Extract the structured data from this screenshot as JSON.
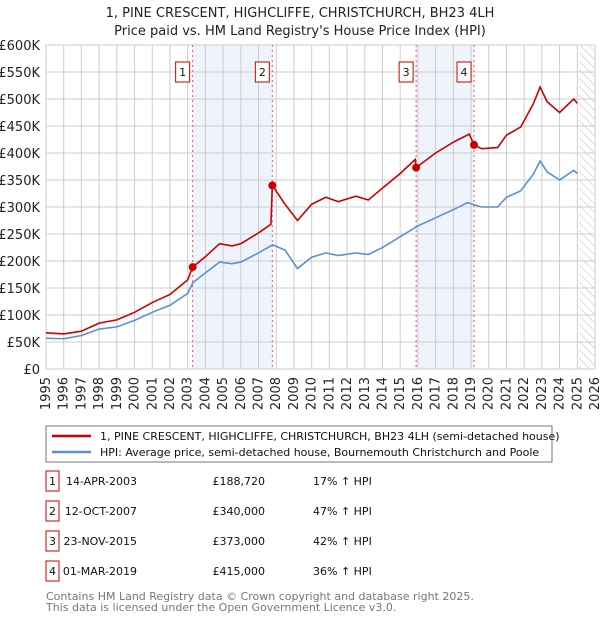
{
  "chart_data": {
    "type": "line",
    "title": "1, PINE CRESCENT, HIGHCLIFFE, CHRISTCHURCH, BH23 4LH",
    "subtitle": "Price paid vs. HM Land Registry's House Price Index (HPI)",
    "xlim": [
      1995,
      2026
    ],
    "ylim": [
      0,
      600000
    ],
    "x_ticks": [
      "1995",
      "1996",
      "1997",
      "1998",
      "1999",
      "2000",
      "2001",
      "2002",
      "2003",
      "2004",
      "2005",
      "2006",
      "2007",
      "2008",
      "2009",
      "2010",
      "2011",
      "2012",
      "2013",
      "2014",
      "2015",
      "2016",
      "2017",
      "2018",
      "2019",
      "2020",
      "2021",
      "2022",
      "2023",
      "2024",
      "2025",
      "2026"
    ],
    "y_ticks": [
      {
        "v": 0,
        "label": "£0"
      },
      {
        "v": 50000,
        "label": "£50K"
      },
      {
        "v": 100000,
        "label": "£100K"
      },
      {
        "v": 150000,
        "label": "£150K"
      },
      {
        "v": 200000,
        "label": "£200K"
      },
      {
        "v": 250000,
        "label": "£250K"
      },
      {
        "v": 300000,
        "label": "£300K"
      },
      {
        "v": 350000,
        "label": "£350K"
      },
      {
        "v": 400000,
        "label": "£400K"
      },
      {
        "v": 450000,
        "label": "£450K"
      },
      {
        "v": 500000,
        "label": "£500K"
      },
      {
        "v": 550000,
        "label": "£550K"
      },
      {
        "v": 600000,
        "label": "£600K"
      }
    ],
    "grid": true,
    "forecast_hatch_from": 2025.1,
    "shaded_periods": [
      [
        2003.28,
        2007.78
      ],
      [
        2015.9,
        2019.17
      ]
    ],
    "series": [
      {
        "name": "1, PINE CRESCENT, HIGHCLIFFE, CHRISTCHURCH, BH23 4LH (semi-detached house)",
        "color": "#cc0000",
        "x": [
          1995,
          1996,
          1997,
          1998,
          1999,
          2000,
          2001,
          2002,
          2003,
          2003.28,
          2004,
          2004.8,
          2005.5,
          2006,
          2007,
          2007.7,
          2007.78,
          2008.5,
          2009.2,
          2010,
          2010.8,
          2011.5,
          2012.5,
          2013.2,
          2014,
          2015,
          2015.85,
          2015.9,
          2017,
          2018,
          2018.9,
          2019.17,
          2019.6,
          2020.5,
          2021,
          2021.8,
          2022.5,
          2022.9,
          2023.3,
          2024,
          2024.8,
          2025
        ],
        "y": [
          67000,
          65000,
          70000,
          85000,
          91000,
          105000,
          123000,
          138000,
          165000,
          188720,
          208000,
          232000,
          228000,
          232000,
          252000,
          268000,
          340000,
          305000,
          275000,
          305000,
          318000,
          310000,
          320000,
          313000,
          335000,
          362000,
          388000,
          373000,
          400000,
          420000,
          435000,
          415000,
          408000,
          410000,
          433000,
          448000,
          490000,
          522000,
          495000,
          475000,
          500000,
          492000
        ]
      },
      {
        "name": "HPI: Average price, semi-detached house, Bournemouth Christchurch and Poole",
        "color": "#5b8fd6",
        "x": [
          1995,
          1996,
          1997,
          1998,
          1999,
          2000,
          2001,
          2002,
          2003,
          2003.3,
          2004,
          2004.8,
          2005.5,
          2006,
          2007,
          2007.8,
          2008.5,
          2009.2,
          2010,
          2010.8,
          2011.5,
          2012.5,
          2013.2,
          2014,
          2015,
          2016,
          2017,
          2018,
          2018.8,
          2019.6,
          2020.5,
          2021,
          2021.8,
          2022.5,
          2022.9,
          2023.3,
          2024,
          2024.8,
          2025
        ],
        "y": [
          57000,
          56000,
          62000,
          74000,
          78000,
          90000,
          105000,
          118000,
          140000,
          160000,
          178000,
          198000,
          195000,
          198000,
          215000,
          230000,
          220000,
          186000,
          207000,
          215000,
          210000,
          215000,
          212000,
          225000,
          245000,
          265000,
          280000,
          295000,
          308000,
          300000,
          300000,
          318000,
          330000,
          360000,
          385000,
          365000,
          350000,
          368000,
          362000
        ]
      }
    ],
    "sales": [
      {
        "num": "1",
        "x": 2003.28,
        "date": "14-APR-2003",
        "price": "£188,720",
        "value": 188720,
        "hpi": "17% ↑ HPI"
      },
      {
        "num": "2",
        "x": 2007.78,
        "date": "12-OCT-2007",
        "price": "£340,000",
        "value": 340000,
        "hpi": "47% ↑ HPI"
      },
      {
        "num": "3",
        "x": 2015.9,
        "date": "23-NOV-2015",
        "price": "£373,000",
        "value": 373000,
        "hpi": "42% ↑ HPI"
      },
      {
        "num": "4",
        "x": 2019.17,
        "date": "01-MAR-2019",
        "price": "£415,000",
        "value": 415000,
        "hpi": "36% ↑ HPI"
      }
    ]
  },
  "footer": {
    "line1": "Contains HM Land Registry data © Crown copyright and database right 2025.",
    "line2": "This data is licensed under the Open Government Licence v3.0."
  }
}
